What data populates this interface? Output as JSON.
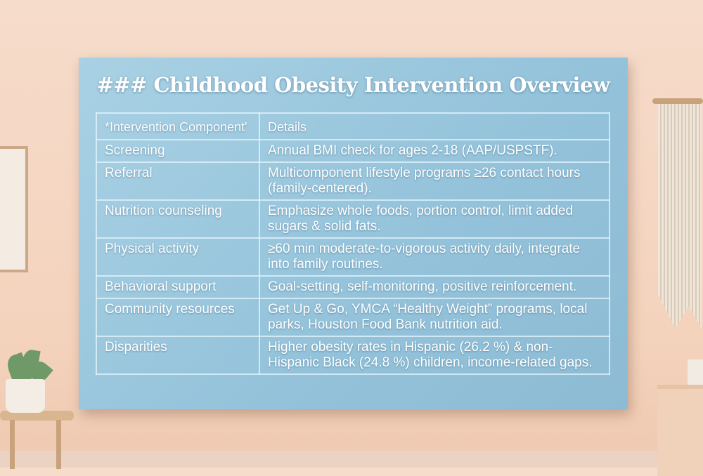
{
  "board": {
    "title": "### Childhood Obesity Intervention Overview",
    "table": {
      "headers": [
        "*Intervention Component'",
        "Details"
      ],
      "rows": [
        [
          "Screening",
          "Annual BMI check for ages 2-18 (AAP/USPSTF)."
        ],
        [
          "Referral",
          "Multicomponent lifestyle programs ≥26 contact hours (family-centered)."
        ],
        [
          "Nutrition counseling",
          "Emphasize whole foods, portion control, limit added sugars & solid fats."
        ],
        [
          "Physical activity",
          "≥60 min moderate-to-vigorous activity daily, integrate into family routines."
        ],
        [
          "Behavioral support",
          "Goal-setting, self-monitoring, positive reinforcement."
        ],
        [
          "Community resources",
          "Get Up & Go, YMCA “Healthy Weight” programs, local parks, Houston Food Bank nutrition aid."
        ],
        [
          "Disparities",
          "Higher obesity rates in Hispanic (26.2 %) & non-Hispanic Black (24.8 %) children, income-related gaps."
        ]
      ]
    }
  },
  "colors": {
    "wall": "#f6dccb",
    "board": "#9dc9df",
    "text": "#ffffff"
  }
}
